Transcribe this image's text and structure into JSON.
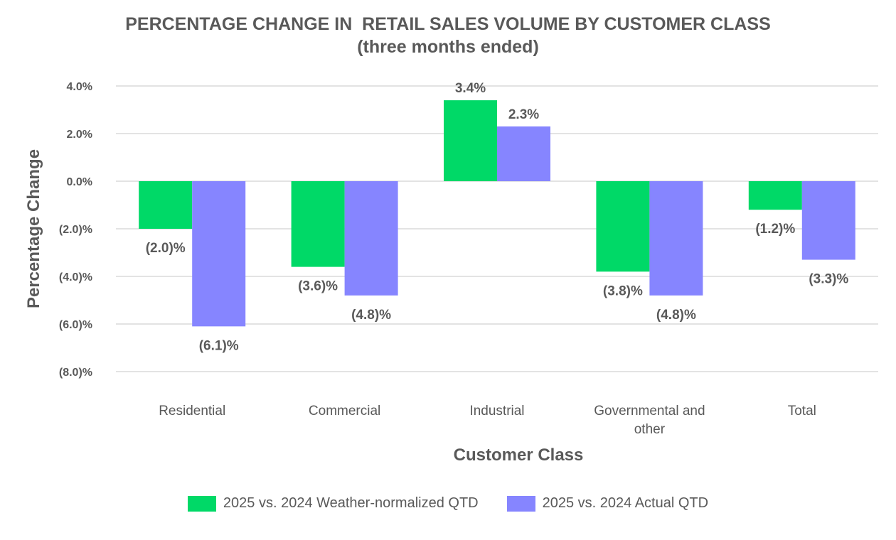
{
  "chart_data": {
    "type": "bar",
    "title": "PERCENTAGE CHANGE IN  RETAIL SALES VOLUME BY CUSTOMER CLASS",
    "subtitle": "(three months ended)",
    "xlabel": "Customer Class",
    "ylabel": "Percentage Change",
    "ylim": [
      -8,
      4
    ],
    "yticks": [
      4,
      2,
      0,
      -2,
      -4,
      -6,
      -8
    ],
    "ytick_labels": [
      "4.0%",
      "2.0%",
      "0.0%",
      "(2.0)%",
      "(4.0)%",
      "(6.0)%",
      "(8.0)%"
    ],
    "categories": [
      [
        "Residential"
      ],
      [
        "Commercial"
      ],
      [
        "Industrial"
      ],
      [
        "Governmental and",
        "other"
      ],
      [
        "Total"
      ]
    ],
    "series": [
      {
        "name": "2025 vs. 2024 Weather-normalized QTD",
        "color": "#00d967",
        "values": [
          -2.0,
          -3.6,
          3.4,
          -3.8,
          -1.2
        ],
        "labels": [
          "(2.0)%",
          "(3.6)%",
          "3.4%",
          "(3.8)%",
          "(1.2)%"
        ]
      },
      {
        "name": "2025 vs. 2024 Actual QTD",
        "color": "#8685ff",
        "values": [
          -6.1,
          -4.8,
          2.3,
          -4.8,
          -3.3
        ],
        "labels": [
          "(6.1)%",
          "(4.8)%",
          "2.3%",
          "(4.8)%",
          "(3.3)%"
        ]
      }
    ],
    "gridlines": true,
    "legend_position": "bottom"
  }
}
